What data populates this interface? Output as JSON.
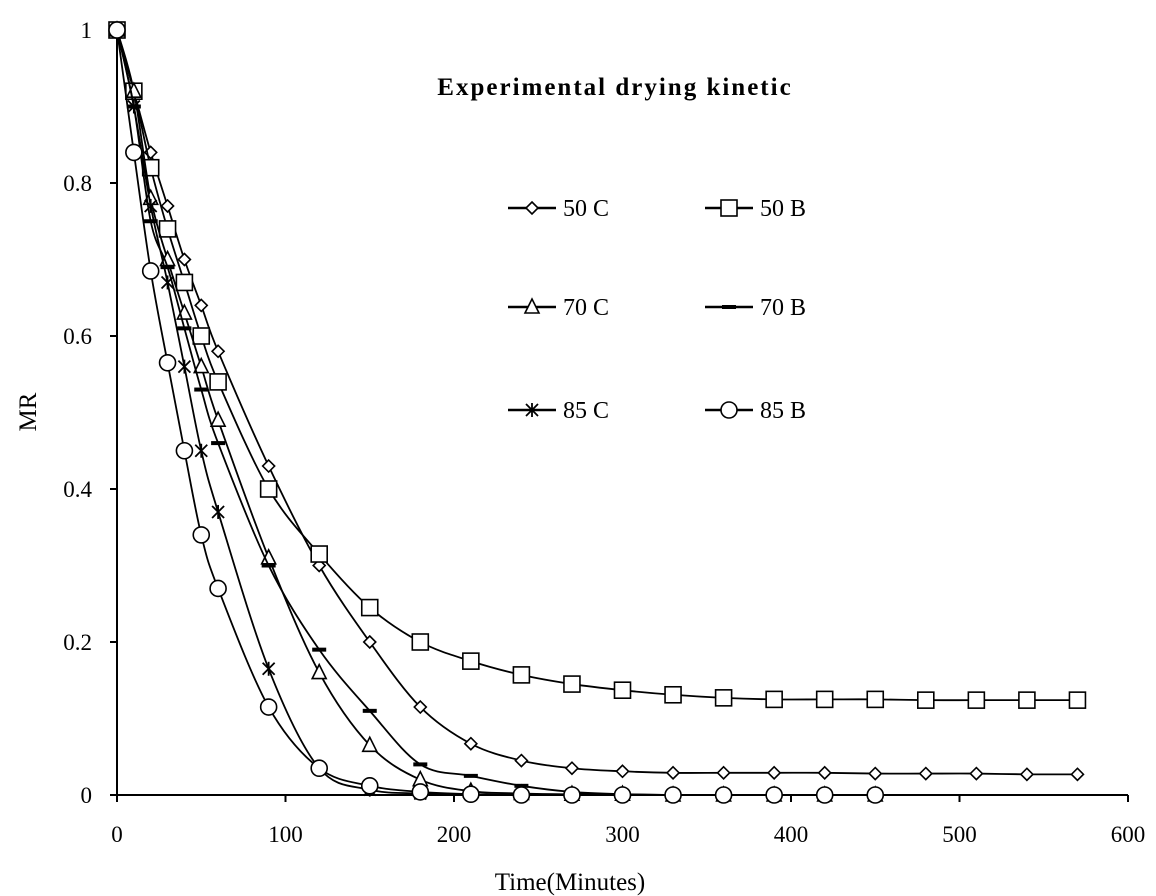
{
  "chart_data": {
    "type": "line",
    "title": "Experimental drying kinetic",
    "xlabel": "Time(Minutes)",
    "ylabel": "MR",
    "xlim": [
      0,
      600
    ],
    "ylim": [
      0,
      1
    ],
    "xticks": [
      0,
      100,
      200,
      300,
      400,
      500,
      600
    ],
    "xtick_labels": [
      "0",
      "100",
      "200",
      "300",
      "400",
      "500",
      "600"
    ],
    "yticks": [
      0,
      0.2,
      0.4,
      0.6,
      0.8,
      1
    ],
    "ytick_labels": [
      "0",
      "0.2",
      "0.4",
      "0.6",
      "0.8",
      "1"
    ],
    "grid": false,
    "legend_position": "upper-right inside plot, 2 columns",
    "series": [
      {
        "name": "50 C",
        "marker": "diamond",
        "color": "#000000",
        "x": [
          0,
          10,
          20,
          30,
          40,
          50,
          60,
          90,
          120,
          150,
          180,
          210,
          240,
          270,
          300,
          330,
          360,
          390,
          420,
          450,
          480,
          510,
          540,
          570
        ],
        "y": [
          1,
          0.92,
          0.84,
          0.77,
          0.7,
          0.64,
          0.58,
          0.43,
          0.3,
          0.2,
          0.115,
          0.067,
          0.045,
          0.035,
          0.031,
          0.029,
          0.029,
          0.029,
          0.029,
          0.028,
          0.028,
          0.028,
          0.027,
          0.027
        ]
      },
      {
        "name": "50 B",
        "marker": "square",
        "color": "#000000",
        "x": [
          0,
          10,
          20,
          30,
          40,
          50,
          60,
          90,
          120,
          150,
          180,
          210,
          240,
          270,
          300,
          330,
          360,
          390,
          420,
          450,
          480,
          510,
          540,
          570
        ],
        "y": [
          1,
          0.92,
          0.82,
          0.74,
          0.67,
          0.6,
          0.54,
          0.4,
          0.315,
          0.245,
          0.2,
          0.175,
          0.157,
          0.145,
          0.137,
          0.131,
          0.127,
          0.125,
          0.125,
          0.125,
          0.124,
          0.124,
          0.124,
          0.124
        ]
      },
      {
        "name": "70 C",
        "marker": "triangle",
        "color": "#000000",
        "x": [
          0,
          10,
          20,
          30,
          40,
          50,
          60,
          90,
          120,
          150,
          180,
          210,
          240,
          270,
          300,
          330,
          360,
          390,
          420,
          450
        ],
        "y": [
          1,
          0.92,
          0.78,
          0.7,
          0.63,
          0.56,
          0.49,
          0.31,
          0.16,
          0.065,
          0.02,
          0.005,
          0.002,
          0.001,
          0.001,
          0,
          0,
          0,
          0,
          0
        ]
      },
      {
        "name": "70 B",
        "marker": "dash",
        "color": "#000000",
        "x": [
          0,
          10,
          20,
          30,
          40,
          50,
          60,
          90,
          120,
          150,
          180,
          210,
          240,
          270,
          300,
          330,
          360,
          390,
          420,
          450
        ],
        "y": [
          1,
          0.9,
          0.75,
          0.69,
          0.61,
          0.53,
          0.46,
          0.3,
          0.19,
          0.11,
          0.04,
          0.025,
          0.012,
          0.004,
          0.001,
          0,
          0,
          0,
          0,
          0
        ]
      },
      {
        "name": "85 C",
        "marker": "star",
        "color": "#000000",
        "x": [
          0,
          10,
          20,
          30,
          40,
          50,
          60,
          90,
          120,
          150,
          180,
          210,
          240,
          270,
          300,
          330,
          360,
          390,
          420,
          450
        ],
        "y": [
          1,
          0.9,
          0.77,
          0.67,
          0.56,
          0.45,
          0.37,
          0.165,
          0.035,
          0.007,
          0.002,
          0.001,
          0,
          0,
          0,
          0,
          0,
          0,
          0,
          0
        ]
      },
      {
        "name": "85 B",
        "marker": "circle",
        "color": "#000000",
        "x": [
          0,
          10,
          20,
          30,
          40,
          50,
          60,
          90,
          120,
          150,
          180,
          210,
          240,
          270,
          300,
          330,
          360,
          390,
          420,
          450
        ],
        "y": [
          1,
          0.84,
          0.685,
          0.565,
          0.45,
          0.34,
          0.27,
          0.115,
          0.035,
          0.012,
          0.004,
          0.001,
          0,
          0,
          0,
          0,
          0,
          0,
          0,
          0
        ]
      }
    ]
  }
}
